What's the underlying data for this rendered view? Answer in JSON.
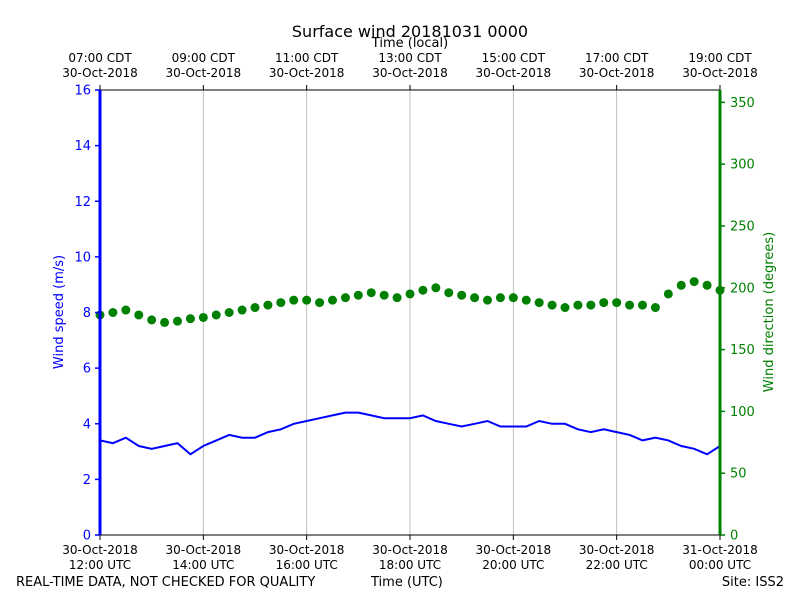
{
  "chart_data": {
    "type": "line",
    "title": "Surface wind 20181031 0000",
    "top_axis_label": "Time (local)",
    "xlabel": "Time (UTC)",
    "ylabel_left": "Wind speed (m/s)",
    "ylabel_right": "Wind direction (degrees)",
    "xlim_hours_utc": [
      12,
      24
    ],
    "ylim_left": [
      0,
      16
    ],
    "ylim_right": [
      0,
      360
    ],
    "grid": "vertical",
    "left_ticks": [
      "0",
      "2",
      "4",
      "6",
      "8",
      "10",
      "12",
      "14",
      "16"
    ],
    "right_ticks": [
      "0",
      "50",
      "100",
      "150",
      "200",
      "250",
      "300",
      "350"
    ],
    "bottom_ticks": [
      {
        "hour": 12,
        "l1": "30-Oct-2018",
        "l2": "12:00 UTC"
      },
      {
        "hour": 14,
        "l1": "30-Oct-2018",
        "l2": "14:00 UTC"
      },
      {
        "hour": 16,
        "l1": "30-Oct-2018",
        "l2": "16:00 UTC"
      },
      {
        "hour": 18,
        "l1": "30-Oct-2018",
        "l2": "18:00 UTC"
      },
      {
        "hour": 20,
        "l1": "30-Oct-2018",
        "l2": "20:00 UTC"
      },
      {
        "hour": 22,
        "l1": "30-Oct-2018",
        "l2": "22:00 UTC"
      },
      {
        "hour": 24,
        "l1": "31-Oct-2018",
        "l2": "00:00 UTC"
      }
    ],
    "top_ticks": [
      {
        "hour": 12,
        "l1": "07:00 CDT",
        "l2": "30-Oct-2018"
      },
      {
        "hour": 14,
        "l1": "09:00 CDT",
        "l2": "30-Oct-2018"
      },
      {
        "hour": 16,
        "l1": "11:00 CDT",
        "l2": "30-Oct-2018"
      },
      {
        "hour": 18,
        "l1": "13:00 CDT",
        "l2": "30-Oct-2018"
      },
      {
        "hour": 20,
        "l1": "15:00 CDT",
        "l2": "30-Oct-2018"
      },
      {
        "hour": 22,
        "l1": "17:00 CDT",
        "l2": "30-Oct-2018"
      },
      {
        "hour": 24,
        "l1": "19:00 CDT",
        "l2": "30-Oct-2018"
      }
    ],
    "series": [
      {
        "name": "Wind speed",
        "axis": "left",
        "style": "line",
        "color": "#0000ff",
        "x": [
          12.0,
          12.25,
          12.5,
          12.75,
          13.0,
          13.25,
          13.5,
          13.75,
          14.0,
          14.25,
          14.5,
          14.75,
          15.0,
          15.25,
          15.5,
          15.75,
          16.0,
          16.25,
          16.5,
          16.75,
          17.0,
          17.25,
          17.5,
          17.75,
          18.0,
          18.25,
          18.5,
          18.75,
          19.0,
          19.25,
          19.5,
          19.75,
          20.0,
          20.25,
          20.5,
          20.75,
          21.0,
          21.25,
          21.5,
          21.75,
          22.0,
          22.25,
          22.5,
          22.75,
          23.0,
          23.25,
          23.5,
          23.75,
          24.0
        ],
        "values": [
          3.4,
          3.3,
          3.5,
          3.2,
          3.1,
          3.2,
          3.3,
          2.9,
          3.2,
          3.4,
          3.6,
          3.5,
          3.5,
          3.7,
          3.8,
          4.0,
          4.1,
          4.2,
          4.3,
          4.4,
          4.4,
          4.3,
          4.2,
          4.2,
          4.2,
          4.3,
          4.1,
          4.0,
          3.9,
          4.0,
          4.1,
          3.9,
          3.9,
          3.9,
          4.1,
          4.0,
          4.0,
          3.8,
          3.7,
          3.8,
          3.7,
          3.6,
          3.4,
          3.5,
          3.4,
          3.2,
          3.1,
          2.9,
          3.2
        ]
      },
      {
        "name": "Wind direction",
        "axis": "right",
        "style": "scatter",
        "color": "#008000",
        "x": [
          12.0,
          12.25,
          12.5,
          12.75,
          13.0,
          13.25,
          13.5,
          13.75,
          14.0,
          14.25,
          14.5,
          14.75,
          15.0,
          15.25,
          15.5,
          15.75,
          16.0,
          16.25,
          16.5,
          16.75,
          17.0,
          17.25,
          17.5,
          17.75,
          18.0,
          18.25,
          18.5,
          18.75,
          19.0,
          19.25,
          19.5,
          19.75,
          20.0,
          20.25,
          20.5,
          20.75,
          21.0,
          21.25,
          21.5,
          21.75,
          22.0,
          22.25,
          22.5,
          22.75,
          23.0,
          23.25,
          23.5,
          23.75,
          24.0
        ],
        "values": [
          178,
          180,
          182,
          178,
          174,
          172,
          173,
          175,
          176,
          178,
          180,
          182,
          184,
          186,
          188,
          190,
          190,
          188,
          190,
          192,
          194,
          196,
          194,
          192,
          195,
          198,
          200,
          196,
          194,
          192,
          190,
          192,
          192,
          190,
          188,
          186,
          184,
          186,
          186,
          188,
          188,
          186,
          186,
          184,
          195,
          202,
          205,
          202,
          198
        ]
      }
    ]
  },
  "footer": {
    "left": "REAL-TIME DATA, NOT CHECKED FOR QUALITY",
    "center": "Time (UTC)",
    "right": "Site: ISS2"
  }
}
